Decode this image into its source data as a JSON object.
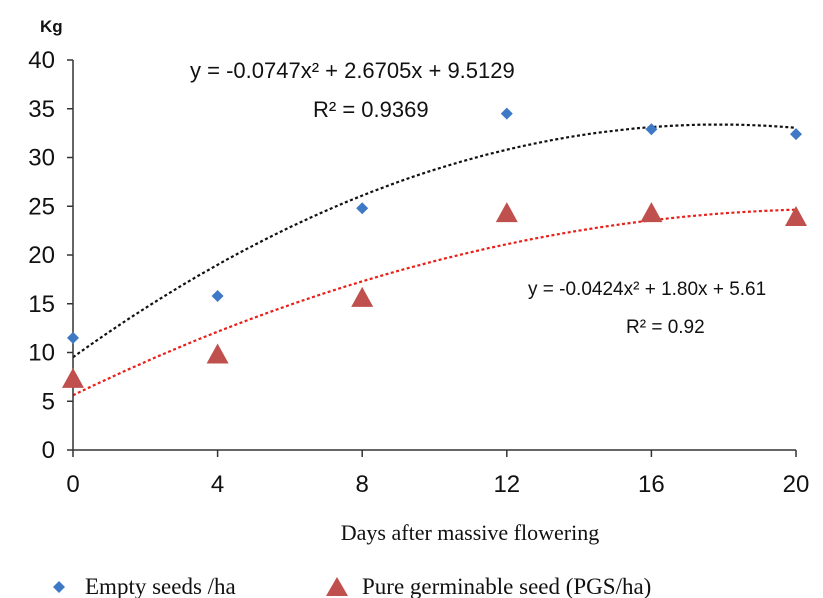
{
  "chart_data": {
    "type": "scatter",
    "ylabel": "Kg",
    "xlabel": "Days after massive flowering",
    "xlim": [
      0,
      20
    ],
    "ylim": [
      0,
      40
    ],
    "xticks": [
      "0",
      "4",
      "8",
      "12",
      "16",
      "20"
    ],
    "yticks": [
      "0",
      "5",
      "10",
      "15",
      "20",
      "25",
      "30",
      "35",
      "40"
    ],
    "grid": false,
    "legend_position": "bottom",
    "series": [
      {
        "name": "Empty seeds /ha",
        "marker": "diamond",
        "color": "#3f78c4",
        "x": [
          0,
          4,
          8,
          12,
          16,
          20
        ],
        "y": [
          11.5,
          15.8,
          24.8,
          34.5,
          32.9,
          32.4
        ],
        "trendline": {
          "color": "#111111",
          "coefficients": [
            -0.0747,
            2.6705,
            9.5129
          ],
          "equation": "y = -0.0747x² + 2.6705x + 9.5129",
          "r2": "R² = 0.9369"
        }
      },
      {
        "name": "Pure germinable seed (PGS/ha)",
        "marker": "triangle",
        "color": "#c0504d",
        "x": [
          0,
          4,
          8,
          12,
          16,
          20
        ],
        "y": [
          7.3,
          9.8,
          15.6,
          24.3,
          24.3,
          23.9
        ],
        "trendline": {
          "color": "#e8201a",
          "coefficients": [
            -0.0424,
            1.8,
            5.61
          ],
          "equation": "y = -0.0424x² + 1.80x + 5.61",
          "r2": "R² = 0.92"
        }
      }
    ]
  }
}
